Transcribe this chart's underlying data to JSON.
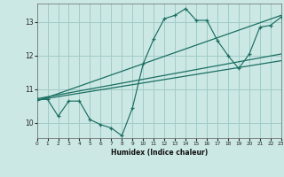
{
  "title": "",
  "xlabel": "Humidex (Indice chaleur)",
  "bg_color": "#cce8e4",
  "grid_color": "#a0ccc8",
  "line_color": "#1a6e62",
  "xlim": [
    0,
    23
  ],
  "ylim": [
    9.55,
    13.55
  ],
  "yticks": [
    10,
    11,
    12,
    13
  ],
  "xticks": [
    0,
    1,
    2,
    3,
    4,
    5,
    6,
    7,
    8,
    9,
    10,
    11,
    12,
    13,
    14,
    15,
    16,
    17,
    18,
    19,
    20,
    21,
    22,
    23
  ],
  "data_x": [
    0,
    1,
    2,
    3,
    4,
    5,
    6,
    7,
    8,
    9,
    10,
    11,
    12,
    13,
    14,
    15,
    16,
    17,
    18,
    19,
    20,
    21,
    22,
    23
  ],
  "data_y": [
    10.7,
    10.7,
    10.2,
    10.65,
    10.65,
    10.1,
    9.95,
    9.85,
    9.62,
    10.45,
    11.75,
    12.5,
    13.1,
    13.2,
    13.4,
    13.05,
    13.05,
    12.45,
    12.0,
    11.62,
    12.05,
    12.85,
    12.9,
    13.15
  ],
  "reg_line1_x": [
    0,
    23
  ],
  "reg_line1_y": [
    10.65,
    13.2
  ],
  "reg_line2_x": [
    0,
    23
  ],
  "reg_line2_y": [
    10.68,
    11.85
  ],
  "reg_line3_x": [
    0,
    23
  ],
  "reg_line3_y": [
    10.72,
    12.05
  ]
}
